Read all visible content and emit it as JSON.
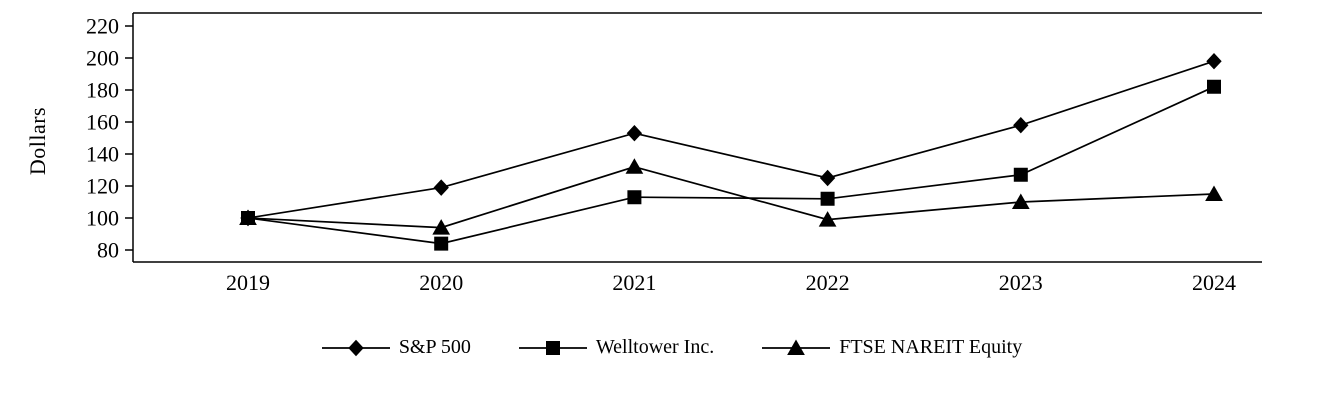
{
  "chart_data": {
    "type": "line",
    "categories": [
      "2019",
      "2020",
      "2021",
      "2022",
      "2023",
      "2024"
    ],
    "series": [
      {
        "name": "S&P 500",
        "marker": "diamond",
        "values": [
          100,
          119,
          153,
          125,
          158,
          198
        ]
      },
      {
        "name": "Welltower Inc.",
        "marker": "square",
        "values": [
          100,
          84,
          113,
          112,
          127,
          182
        ]
      },
      {
        "name": "FTSE NAREIT Equity",
        "marker": "triangle",
        "values": [
          100,
          94,
          132,
          99,
          110,
          115
        ]
      }
    ],
    "title": "",
    "xlabel": "",
    "ylabel": "Dollars",
    "ylim": [
      80,
      220
    ],
    "ytick_step": 20,
    "line_color": "#000000",
    "axis_color": "#000000",
    "grid": false,
    "legend_position": "bottom"
  }
}
